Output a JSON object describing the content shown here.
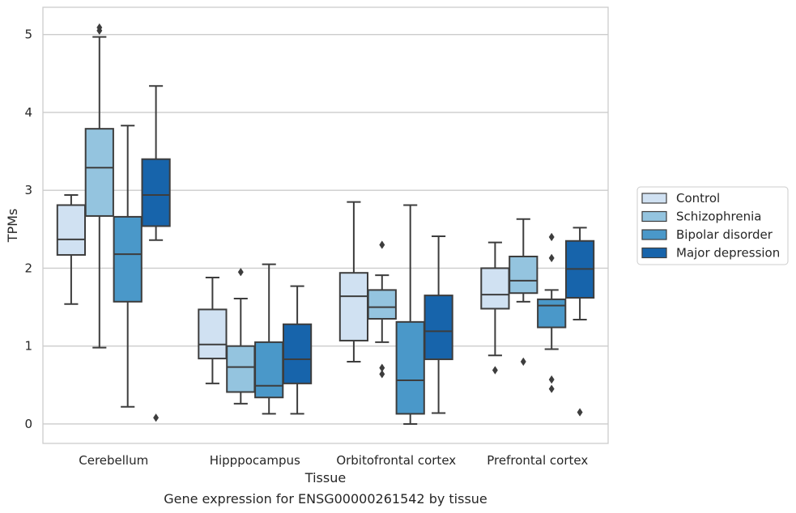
{
  "chart_data": {
    "type": "boxplot",
    "caption": "Gene expression for ENSG00000261542 by tissue",
    "xlabel": "Tissue",
    "ylabel": "TPMs",
    "ylim": [
      -0.25,
      5.35
    ],
    "yticks": [
      0,
      1,
      2,
      3,
      4,
      5
    ],
    "grid": "horizontal",
    "legend_position": "right",
    "categories": [
      "Cerebellum",
      "Hipppocampus",
      "Orbitofrontal cortex",
      "Prefrontal cortex"
    ],
    "series": [
      {
        "name": "Control",
        "color": "#d0e1f2",
        "boxes": [
          {
            "whislo": 1.54,
            "q1": 2.17,
            "med": 2.37,
            "q3": 2.81,
            "whishi": 2.94,
            "fliers": []
          },
          {
            "whislo": 0.52,
            "q1": 0.84,
            "med": 1.02,
            "q3": 1.47,
            "whishi": 1.88,
            "fliers": []
          },
          {
            "whislo": 0.8,
            "q1": 1.07,
            "med": 1.64,
            "q3": 1.94,
            "whishi": 2.85,
            "fliers": []
          },
          {
            "whislo": 0.88,
            "q1": 1.48,
            "med": 1.66,
            "q3": 2.0,
            "whishi": 2.33,
            "fliers": [
              0.69
            ]
          }
        ]
      },
      {
        "name": "Schizophrenia",
        "color": "#94c4df",
        "boxes": [
          {
            "whislo": 0.98,
            "q1": 2.67,
            "med": 3.29,
            "q3": 3.79,
            "whishi": 4.97,
            "fliers": [
              5.09,
              5.05
            ]
          },
          {
            "whislo": 0.26,
            "q1": 0.41,
            "med": 0.73,
            "q3": 1.0,
            "whishi": 1.61,
            "fliers": [
              1.95
            ]
          },
          {
            "whislo": 1.05,
            "q1": 1.35,
            "med": 1.5,
            "q3": 1.72,
            "whishi": 1.91,
            "fliers": [
              2.3,
              0.72,
              0.64
            ]
          },
          {
            "whislo": 1.57,
            "q1": 1.68,
            "med": 1.84,
            "q3": 2.15,
            "whishi": 2.63,
            "fliers": [
              0.8
            ]
          }
        ]
      },
      {
        "name": "Bipolar disorder",
        "color": "#4a98c9",
        "boxes": [
          {
            "whislo": 0.22,
            "q1": 1.57,
            "med": 2.18,
            "q3": 2.66,
            "whishi": 3.83,
            "fliers": []
          },
          {
            "whislo": 0.13,
            "q1": 0.34,
            "med": 0.49,
            "q3": 1.05,
            "whishi": 2.05,
            "fliers": []
          },
          {
            "whislo": 0.0,
            "q1": 0.13,
            "med": 0.56,
            "q3": 1.31,
            "whishi": 2.81,
            "fliers": []
          },
          {
            "whislo": 0.96,
            "q1": 1.24,
            "med": 1.52,
            "q3": 1.6,
            "whishi": 1.72,
            "fliers": [
              2.4,
              2.13,
              0.57,
              0.45
            ]
          }
        ]
      },
      {
        "name": "Major depression",
        "color": "#1764ab",
        "boxes": [
          {
            "whislo": 2.36,
            "q1": 2.54,
            "med": 2.94,
            "q3": 3.4,
            "whishi": 4.34,
            "fliers": [
              0.08
            ]
          },
          {
            "whislo": 0.13,
            "q1": 0.52,
            "med": 0.83,
            "q3": 1.28,
            "whishi": 1.77,
            "fliers": []
          },
          {
            "whislo": 0.14,
            "q1": 0.83,
            "med": 1.19,
            "q3": 1.65,
            "whishi": 2.41,
            "fliers": []
          },
          {
            "whislo": 1.34,
            "q1": 1.62,
            "med": 1.99,
            "q3": 2.35,
            "whishi": 2.52,
            "fliers": [
              0.15
            ]
          }
        ]
      }
    ]
  }
}
